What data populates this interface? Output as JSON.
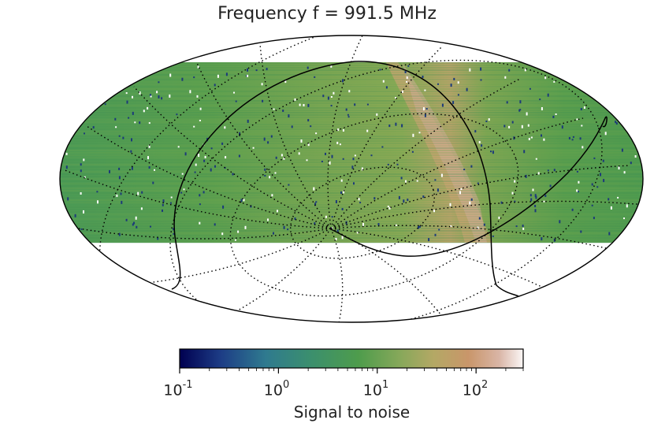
{
  "title": "Frequency f = 991.5 MHz",
  "projection": "mollweide",
  "graticule": "dotted",
  "map_colors": {
    "base_green": "#4e9a4f",
    "band_tan": "#c9a06a",
    "band_pink": "#d7a79a",
    "point_navy": "#1c3a7a",
    "point_white": "#ffffff",
    "outline": "#000000"
  },
  "colorbar": {
    "label": "Signal to noise",
    "scale": "log",
    "range": [
      0.1,
      300
    ],
    "colormap": "gist_earth",
    "ticks": [
      {
        "base": "10",
        "exp": "-1",
        "value": 0.1
      },
      {
        "base": "10",
        "exp": "0",
        "value": 1
      },
      {
        "base": "10",
        "exp": "1",
        "value": 10
      },
      {
        "base": "10",
        "exp": "2",
        "value": 100
      }
    ]
  }
}
